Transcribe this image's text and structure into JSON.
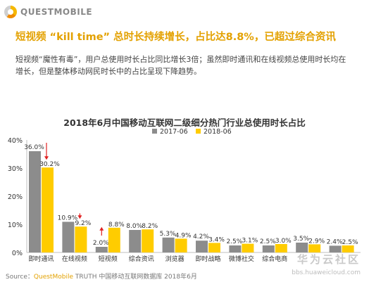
{
  "logo": {
    "text": "QUESTMOBILE"
  },
  "headline": "短视频 “kill time” 总时长持续增长，占比达8.8%，已超过综合资讯",
  "description": "短视频“魔性有毒”，用户总使用时长占比同比增长3倍；虽然即时通讯和在线视频总使用时长均在增长，但是整体移动网民时长中的占比呈现下降趋势。",
  "source": {
    "label": "Source：",
    "brand": "QuestMobile",
    "rest": " TRUTH 中国移动互联网数据库 2018年6月"
  },
  "watermark": {
    "text": "华为云社区",
    "url": "bbs.huaweicloud.com"
  },
  "colors": {
    "series_2017": "#8c8c8c",
    "series_2018": "#ffcc00",
    "arrow": "#e02020",
    "headline": "#e3a100"
  },
  "chart_data": {
    "type": "bar",
    "title": "2018年6月中国移动互联网二级细分热门行业总使用时长占比",
    "categories": [
      "即时通讯",
      "在线视频",
      "短视频",
      "综合资讯",
      "浏览器",
      "即时战略",
      "微博社交",
      "综合电商",
      "",
      ""
    ],
    "series": [
      {
        "name": "2017-06",
        "values": [
          36.0,
          10.9,
          2.0,
          8.0,
          5.3,
          4.2,
          2.5,
          2.5,
          3.5,
          2.4
        ],
        "labels": [
          "36.0%",
          "10.9%",
          "2.0%",
          "8.0%",
          "5.3%",
          "4.2%",
          "2.5%",
          "2.5%",
          "3.5%",
          "2.4%"
        ]
      },
      {
        "name": "2018-06",
        "values": [
          30.2,
          9.2,
          8.8,
          8.2,
          4.9,
          3.4,
          3.1,
          3.0,
          2.9,
          2.5
        ],
        "labels": [
          "30.2%",
          "9.2%",
          "8.8%",
          "8.2%",
          "4.9%",
          "3.4%",
          "3.1%",
          "3.0%",
          "2.9%",
          "2.5%"
        ]
      }
    ],
    "ylim": [
      0,
      40
    ],
    "yticks": [
      0,
      10,
      20,
      30,
      40
    ],
    "ytick_labels": [
      "0%",
      "10%",
      "20%",
      "30%",
      "40%"
    ],
    "grid": false,
    "legend": "top-center",
    "annotations": [
      {
        "category": "即时通讯",
        "direction": "down"
      },
      {
        "category": "在线视频",
        "direction": "down"
      },
      {
        "category": "短视频",
        "direction": "up"
      }
    ]
  }
}
